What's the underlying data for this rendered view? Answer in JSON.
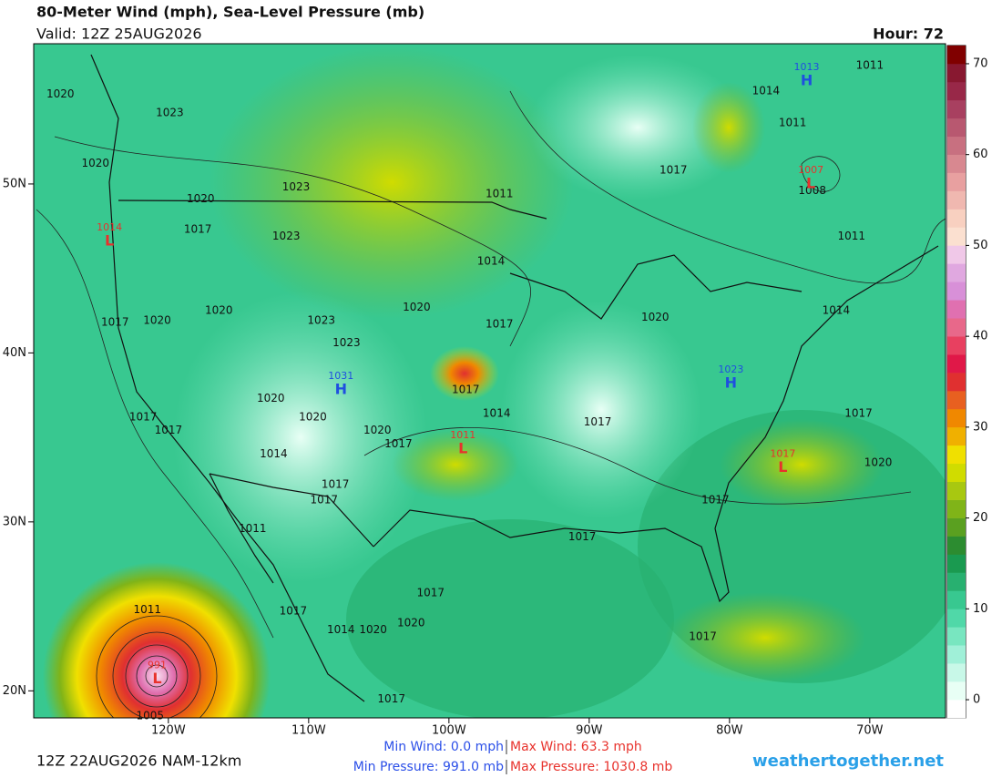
{
  "header": {
    "title": "80-Meter Wind (mph), Sea-Level Pressure (mb)",
    "valid": "Valid: 12Z 25AUG2026",
    "hour": "Hour: 72"
  },
  "map": {
    "xlim": [
      -129.6,
      -64.6
    ],
    "ylim": [
      18.4,
      58.3
    ],
    "xticks": [
      {
        "value": -120,
        "label": "120W"
      },
      {
        "value": -110,
        "label": "110W"
      },
      {
        "value": -100,
        "label": "100W"
      },
      {
        "value": -90,
        "label": "90W"
      },
      {
        "value": -80,
        "label": "80W"
      },
      {
        "value": -70,
        "label": "70W"
      }
    ],
    "yticks": [
      {
        "value": 50,
        "label": "50N"
      },
      {
        "value": 40,
        "label": "40N"
      },
      {
        "value": 30,
        "label": "30N"
      },
      {
        "value": 20,
        "label": "20N"
      }
    ],
    "isobar_labels": [
      {
        "label": "1020",
        "lon": -127.7,
        "lat": 55.3
      },
      {
        "label": "1023",
        "lon": -119.9,
        "lat": 54.2
      },
      {
        "label": "1020",
        "lon": -125.2,
        "lat": 51.2
      },
      {
        "label": "1023",
        "lon": -110.9,
        "lat": 49.8
      },
      {
        "label": "1020",
        "lon": -117.7,
        "lat": 49.1
      },
      {
        "label": "1017",
        "lon": -117.9,
        "lat": 47.3
      },
      {
        "label": "1023",
        "lon": -111.6,
        "lat": 46.9
      },
      {
        "label": "1017",
        "lon": -123.8,
        "lat": 41.8
      },
      {
        "label": "1020",
        "lon": -120.8,
        "lat": 41.9
      },
      {
        "label": "1020",
        "lon": -116.4,
        "lat": 42.5
      },
      {
        "label": "1023",
        "lon": -109.1,
        "lat": 41.9
      },
      {
        "label": "1023",
        "lon": -107.3,
        "lat": 40.6
      },
      {
        "label": "1020",
        "lon": -102.3,
        "lat": 42.7
      },
      {
        "label": "1017",
        "lon": -96.4,
        "lat": 41.7
      },
      {
        "label": "1014",
        "lon": -97.0,
        "lat": 45.4
      },
      {
        "label": "1011",
        "lon": -96.4,
        "lat": 49.4
      },
      {
        "label": "1017",
        "lon": -84.0,
        "lat": 50.8
      },
      {
        "label": "1014",
        "lon": -77.4,
        "lat": 55.5
      },
      {
        "label": "1011",
        "lon": -70.0,
        "lat": 57.0
      },
      {
        "label": "1011",
        "lon": -75.5,
        "lat": 53.6
      },
      {
        "label": "1011",
        "lon": -71.3,
        "lat": 46.9
      },
      {
        "label": "1014",
        "lon": -72.4,
        "lat": 42.5
      },
      {
        "label": "1020",
        "lon": -85.3,
        "lat": 42.1
      },
      {
        "label": "1017",
        "lon": -98.8,
        "lat": 37.8
      },
      {
        "label": "1014",
        "lon": -96.6,
        "lat": 36.4
      },
      {
        "label": "1017",
        "lon": -89.4,
        "lat": 35.9
      },
      {
        "label": "1020",
        "lon": -112.7,
        "lat": 37.3
      },
      {
        "label": "1020",
        "lon": -109.7,
        "lat": 36.2
      },
      {
        "label": "1020",
        "lon": -105.1,
        "lat": 35.4
      },
      {
        "label": "1017",
        "lon": -103.6,
        "lat": 34.6
      },
      {
        "label": "1017",
        "lon": -121.8,
        "lat": 36.2
      },
      {
        "label": "1017",
        "lon": -120.0,
        "lat": 35.4
      },
      {
        "label": "1014",
        "lon": -112.5,
        "lat": 34.0
      },
      {
        "label": "1017",
        "lon": -108.1,
        "lat": 32.2
      },
      {
        "label": "1017",
        "lon": -108.9,
        "lat": 31.3
      },
      {
        "label": "1017",
        "lon": -70.8,
        "lat": 36.4
      },
      {
        "label": "1020",
        "lon": -69.4,
        "lat": 33.5
      },
      {
        "label": "1017",
        "lon": -81.0,
        "lat": 31.3
      },
      {
        "label": "1017",
        "lon": -90.5,
        "lat": 29.1
      },
      {
        "label": "1011",
        "lon": -114.0,
        "lat": 29.6
      },
      {
        "label": "1017",
        "lon": -101.3,
        "lat": 25.8
      },
      {
        "label": "1020",
        "lon": -102.7,
        "lat": 24.0
      },
      {
        "label": "1014",
        "lon": -107.7,
        "lat": 23.6
      },
      {
        "label": "1020",
        "lon": -105.4,
        "lat": 23.6
      },
      {
        "label": "1017",
        "lon": -111.1,
        "lat": 24.7
      },
      {
        "label": "1017",
        "lon": -81.9,
        "lat": 23.2
      },
      {
        "label": "1011",
        "lon": -121.5,
        "lat": 24.8
      },
      {
        "label": "1005",
        "lon": -121.3,
        "lat": 18.5
      },
      {
        "label": "1017",
        "lon": -104.1,
        "lat": 19.5
      },
      {
        "label": "1008",
        "lon": -74.1,
        "lat": 49.6
      }
    ],
    "high_color": "#1f4fe0",
    "low_color": "#e8322c",
    "centers": [
      {
        "kind": "H",
        "pressure": "1013",
        "lon": -74.5,
        "lat": 56.1
      },
      {
        "kind": "H",
        "pressure": "1031",
        "lon": -107.7,
        "lat": 37.8
      },
      {
        "kind": "H",
        "pressure": "1023",
        "lon": -79.9,
        "lat": 38.2
      },
      {
        "kind": "L",
        "pressure": "1014",
        "lon": -124.2,
        "lat": 46.6
      },
      {
        "kind": "L",
        "pressure": "1007",
        "lon": -74.2,
        "lat": 50.0
      },
      {
        "kind": "L",
        "pressure": "1011",
        "lon": -99.0,
        "lat": 34.3
      },
      {
        "kind": "L",
        "pressure": "1017",
        "lon": -76.2,
        "lat": 33.2
      },
      {
        "kind": "L",
        "pressure": "991",
        "lon": -120.8,
        "lat": 20.7
      }
    ]
  },
  "colorbar": {
    "lim": [
      -2,
      72
    ],
    "ticks": [
      0,
      10,
      20,
      30,
      40,
      50,
      60,
      70
    ],
    "colors": [
      "#ffffff",
      "#e8fff5",
      "#c8f8e8",
      "#a0f0d8",
      "#78e6c0",
      "#50d8a8",
      "#38c890",
      "#28b070",
      "#1a9a50",
      "#2c8c30",
      "#5aa020",
      "#80b418",
      "#a8c810",
      "#d0dc00",
      "#f0e000",
      "#f0b000",
      "#f08800",
      "#e86020",
      "#e03030",
      "#e01848",
      "#e84060",
      "#e8688a",
      "#e070b0",
      "#d890d8",
      "#e0a8e0",
      "#f0c8e8",
      "#fbe0d0",
      "#f8d0c0",
      "#f0b8b0",
      "#e8a0a0",
      "#d88890",
      "#c87080",
      "#b85870",
      "#a84060",
      "#982848",
      "#881830",
      "#800000"
    ]
  },
  "footer": {
    "run": "12Z 22AUG2026 NAM-12km",
    "min_wind": "Min Wind:  0.0 mph",
    "max_wind": "Max Wind: 63.3 mph",
    "min_pressure": "Min Pressure: 991.0 mb",
    "max_pressure": "Max Pressure: 1030.8 mb",
    "site": "weathertogether.net"
  }
}
